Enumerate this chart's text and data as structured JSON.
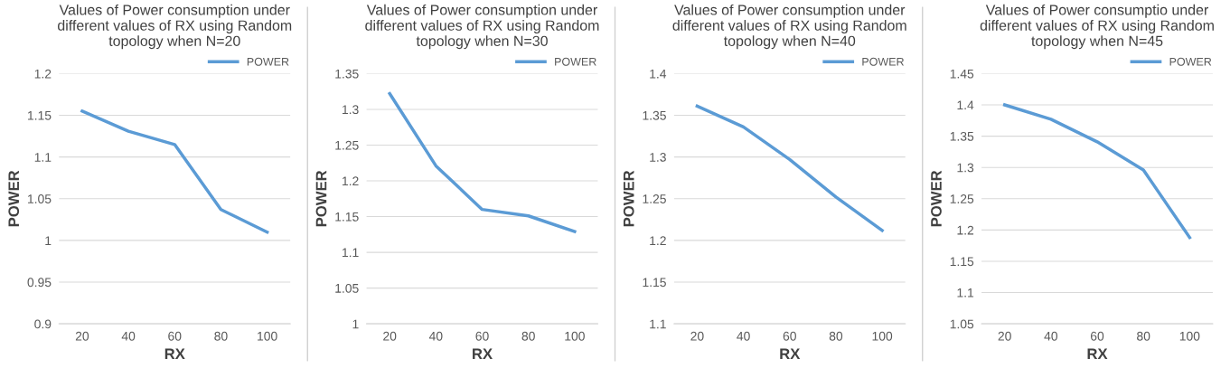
{
  "chart_data": [
    {
      "type": "line",
      "title": "Values of Power consumption under\ndifferent values of RX using Random\ntopology when N=20",
      "xlabel": "RX",
      "ylabel": "POWER",
      "categories": [
        "20",
        "40",
        "60",
        "80",
        "100"
      ],
      "series": [
        {
          "name": "POWER",
          "color": "#5b9bd5",
          "values": [
            1.155,
            1.131,
            1.115,
            1.037,
            1.01
          ]
        }
      ],
      "ylim": [
        0.9,
        1.2
      ],
      "yticks": [
        {
          "value": 0.9,
          "label": "0.9"
        },
        {
          "value": 0.95,
          "label": "0.95"
        },
        {
          "value": 1,
          "label": "1"
        },
        {
          "value": 1.05,
          "label": "1.05"
        },
        {
          "value": 1.1,
          "label": "1.1"
        },
        {
          "value": 1.15,
          "label": "1.15"
        },
        {
          "value": 1.2,
          "label": "1.2"
        }
      ],
      "grid": "y",
      "legend": "top right",
      "marker": "none",
      "line_style": "solid"
    },
    {
      "type": "line",
      "title": "Values of Power consumption under\ndifferent values of RX using Random\ntopology when N=30",
      "xlabel": "RX",
      "ylabel": "POWER",
      "categories": [
        "20",
        "40",
        "60",
        "80",
        "100"
      ],
      "series": [
        {
          "name": "POWER",
          "color": "#5b9bd5",
          "values": [
            1.322,
            1.221,
            1.16,
            1.151,
            1.129
          ]
        }
      ],
      "ylim": [
        1,
        1.35
      ],
      "yticks": [
        {
          "value": 1,
          "label": "1"
        },
        {
          "value": 1.05,
          "label": "1.05"
        },
        {
          "value": 1.1,
          "label": "1.1"
        },
        {
          "value": 1.15,
          "label": "1.15"
        },
        {
          "value": 1.2,
          "label": "1.2"
        },
        {
          "value": 1.25,
          "label": "1.25"
        },
        {
          "value": 1.3,
          "label": "1.3"
        },
        {
          "value": 1.35,
          "label": "1.35"
        }
      ],
      "grid": "y",
      "legend": "top right",
      "marker": "none",
      "line_style": "solid"
    },
    {
      "type": "line",
      "title": "Values of Power consumption under\ndifferent values of RX using Random\ntopology when N=40",
      "xlabel": "RX",
      "ylabel": "POWER",
      "categories": [
        "20",
        "40",
        "60",
        "80",
        "100"
      ],
      "series": [
        {
          "name": "POWER",
          "color": "#5b9bd5",
          "values": [
            1.361,
            1.336,
            1.297,
            1.252,
            1.212
          ]
        }
      ],
      "ylim": [
        1.1,
        1.4
      ],
      "yticks": [
        {
          "value": 1.1,
          "label": "1.1"
        },
        {
          "value": 1.15,
          "label": "1.15"
        },
        {
          "value": 1.2,
          "label": "1.2"
        },
        {
          "value": 1.25,
          "label": "1.25"
        },
        {
          "value": 1.3,
          "label": "1.3"
        },
        {
          "value": 1.35,
          "label": "1.35"
        },
        {
          "value": 1.4,
          "label": "1.4"
        }
      ],
      "grid": "y",
      "legend": "top right",
      "marker": "none",
      "line_style": "solid"
    },
    {
      "type": "line",
      "title": "Values of Power consumptio under\ndifferent values of RX using Random\ntopology when N=45",
      "xlabel": "RX",
      "ylabel": "POWER",
      "categories": [
        "20",
        "40",
        "60",
        "80",
        "100"
      ],
      "series": [
        {
          "name": "POWER",
          "color": "#5b9bd5",
          "values": [
            1.4,
            1.377,
            1.341,
            1.296,
            1.188
          ]
        }
      ],
      "ylim": [
        1.05,
        1.45
      ],
      "yticks": [
        {
          "value": 1.05,
          "label": "1.05"
        },
        {
          "value": 1.1,
          "label": "1.1"
        },
        {
          "value": 1.15,
          "label": "1.15"
        },
        {
          "value": 1.2,
          "label": "1.2"
        },
        {
          "value": 1.25,
          "label": "1.25"
        },
        {
          "value": 1.3,
          "label": "1.3"
        },
        {
          "value": 1.35,
          "label": "1.35"
        },
        {
          "value": 1.4,
          "label": "1.4"
        },
        {
          "value": 1.45,
          "label": "1.45"
        }
      ],
      "grid": "y",
      "legend": "top right",
      "marker": "none",
      "line_style": "solid"
    }
  ]
}
